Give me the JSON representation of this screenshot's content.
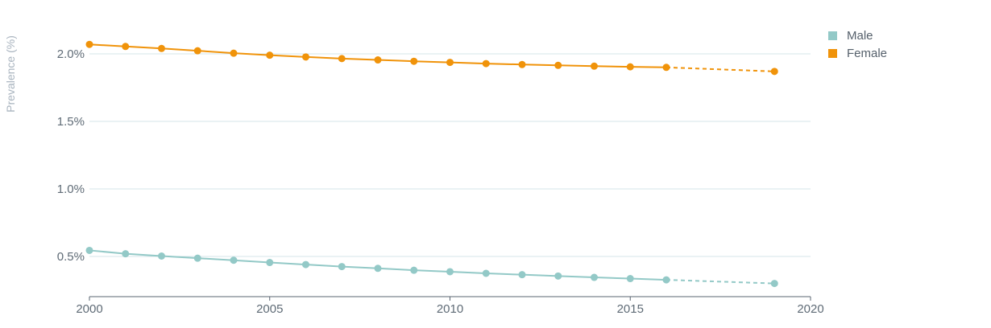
{
  "chart_data": {
    "type": "line",
    "ylabel": "Prevalence (%)",
    "xlabel": "",
    "xlim": [
      2000,
      2020
    ],
    "ylim": [
      0.2,
      2.2
    ],
    "x_ticks": [
      2000,
      2005,
      2010,
      2015,
      2020
    ],
    "y_ticks": [
      0.5,
      1.0,
      1.5,
      2.0
    ],
    "y_tick_labels": [
      "0.5%",
      "1.0%",
      "1.5%",
      "2.0%"
    ],
    "grid": true,
    "legend_position": "top-right",
    "series": [
      {
        "name": "Male",
        "color": "#93c9c7",
        "x": [
          2000,
          2001,
          2002,
          2003,
          2004,
          2005,
          2006,
          2007,
          2008,
          2009,
          2010,
          2011,
          2012,
          2013,
          2014,
          2015,
          2016
        ],
        "values": [
          0.545,
          0.52,
          0.503,
          0.487,
          0.472,
          0.455,
          0.44,
          0.425,
          0.412,
          0.398,
          0.387,
          0.375,
          0.365,
          0.355,
          0.345,
          0.336,
          0.327
        ],
        "projection": {
          "x": [
            2016,
            2019
          ],
          "values": [
            0.327,
            0.3
          ]
        }
      },
      {
        "name": "Female",
        "color": "#f0930a",
        "x": [
          2000,
          2001,
          2002,
          2003,
          2004,
          2005,
          2006,
          2007,
          2008,
          2009,
          2010,
          2011,
          2012,
          2013,
          2014,
          2015,
          2016
        ],
        "values": [
          2.07,
          2.055,
          2.04,
          2.023,
          2.005,
          1.99,
          1.977,
          1.965,
          1.955,
          1.945,
          1.937,
          1.928,
          1.921,
          1.915,
          1.909,
          1.904,
          1.9
        ],
        "projection": {
          "x": [
            2016,
            2019
          ],
          "values": [
            1.9,
            1.87
          ]
        }
      }
    ]
  }
}
